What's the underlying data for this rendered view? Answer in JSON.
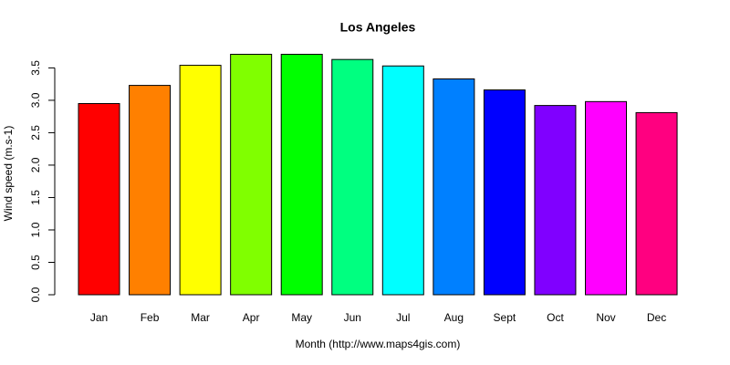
{
  "chart_data": {
    "type": "bar",
    "title": "Los Angeles",
    "x_label": "Month (http://www.maps4gis.com)",
    "y_label": "Wind speed (m.s-1)",
    "categories": [
      "Jan",
      "Feb",
      "Mar",
      "Apr",
      "May",
      "Jun",
      "Jul",
      "Aug",
      "Sept",
      "Oct",
      "Nov",
      "Dec"
    ],
    "values": [
      2.95,
      3.23,
      3.54,
      3.71,
      3.71,
      3.63,
      3.53,
      3.33,
      3.16,
      2.92,
      2.98,
      2.81
    ],
    "colors": [
      "#ff0000",
      "#ff8000",
      "#ffff00",
      "#80ff00",
      "#00ff00",
      "#00ff80",
      "#00ffff",
      "#0080ff",
      "#0000ff",
      "#8000ff",
      "#ff00ff",
      "#ff0080"
    ],
    "ylim": [
      0,
      3.9
    ],
    "yticks": [
      {
        "value": 0,
        "label": "0.0"
      },
      0.5,
      {
        "value": 1,
        "label": "1.0"
      },
      1.5,
      {
        "value": 2,
        "label": "2.0"
      },
      2.5,
      {
        "value": 3,
        "label": "3.0"
      },
      3.5
    ],
    "grid": false
  }
}
